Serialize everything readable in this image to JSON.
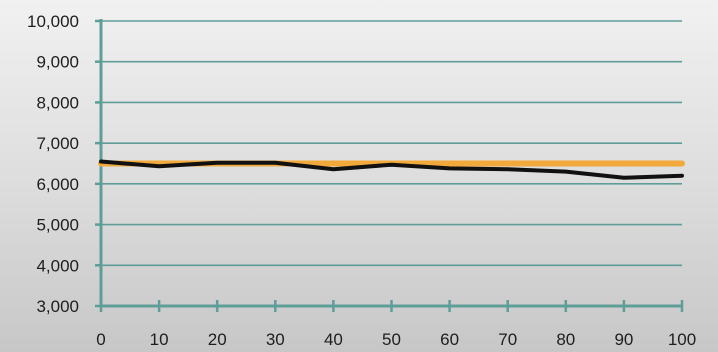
{
  "chart_data": {
    "type": "line",
    "title": "",
    "xlabel": "",
    "ylabel": "",
    "x": [
      0,
      10,
      20,
      30,
      40,
      50,
      60,
      70,
      80,
      90,
      100
    ],
    "xlim": [
      0,
      100
    ],
    "ylim": [
      3000,
      10000
    ],
    "x_tick_labels": [
      "0",
      "10",
      "20",
      "30",
      "40",
      "50",
      "60",
      "70",
      "80",
      "90",
      "100"
    ],
    "y_tick_labels": [
      "3,000",
      "4,000",
      "5,000",
      "6,000",
      "7,000",
      "8,000",
      "9,000",
      "10,000"
    ],
    "y_ticks": [
      3000,
      4000,
      5000,
      6000,
      7000,
      8000,
      9000,
      10000
    ],
    "grid": "horizontal",
    "legend": "none",
    "series": [
      {
        "values": [
          6500,
          6500,
          6500,
          6500,
          6500,
          6500,
          6500,
          6500,
          6500,
          6500,
          6500
        ],
        "color": "#f2a93b"
      },
      {
        "values": [
          6550,
          6430,
          6520,
          6520,
          6360,
          6470,
          6380,
          6360,
          6300,
          6150,
          6200
        ],
        "color": "#111111"
      }
    ],
    "colors": {
      "axis": "#5f9e98",
      "grid": "#5f9e98"
    }
  }
}
